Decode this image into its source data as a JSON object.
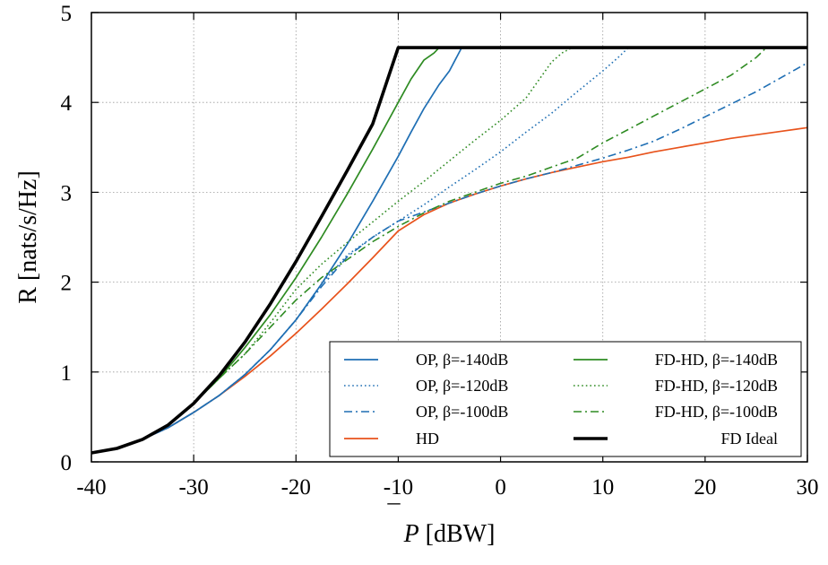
{
  "chart_data": {
    "type": "line",
    "xlabel_main": "P",
    "xlabel_bar": "¯",
    "xlabel_unit": " [dBW]",
    "ylabel": "R [nats/s/Hz]",
    "xlim": [
      -40,
      30
    ],
    "ylim": [
      0,
      5
    ],
    "xticks": [
      -40,
      -30,
      -20,
      -10,
      0,
      10,
      20,
      30
    ],
    "yticks": [
      0,
      1,
      2,
      3,
      4,
      5
    ],
    "grid": true,
    "legend_position": "bottom-right",
    "series": [
      {
        "name": "OP, β=-140dB",
        "color": "#1f6fb4",
        "style": "solid",
        "points": [
          [
            -40,
            0.1
          ],
          [
            -37.5,
            0.15
          ],
          [
            -35,
            0.25
          ],
          [
            -32.5,
            0.38
          ],
          [
            -30,
            0.55
          ],
          [
            -27.5,
            0.74
          ],
          [
            -25,
            0.97
          ],
          [
            -22.5,
            1.25
          ],
          [
            -20,
            1.58
          ],
          [
            -17.5,
            1.98
          ],
          [
            -15,
            2.42
          ],
          [
            -12.5,
            2.9
          ],
          [
            -10,
            3.4
          ],
          [
            -8.75,
            3.67
          ],
          [
            -7.5,
            3.93
          ],
          [
            -6,
            4.2
          ],
          [
            -5,
            4.35
          ],
          [
            -3.8,
            4.61
          ],
          [
            30,
            4.61
          ]
        ]
      },
      {
        "name": "OP, β=-120dB",
        "color": "#1f6fb4",
        "style": "dotted",
        "points": [
          [
            -40,
            0.1
          ],
          [
            -37.5,
            0.15
          ],
          [
            -35,
            0.25
          ],
          [
            -32.5,
            0.38
          ],
          [
            -30,
            0.55
          ],
          [
            -27.5,
            0.74
          ],
          [
            -25,
            0.97
          ],
          [
            -22.5,
            1.25
          ],
          [
            -20,
            1.58
          ],
          [
            -17.5,
            1.98
          ],
          [
            -15,
            2.3
          ],
          [
            -12.5,
            2.5
          ],
          [
            -10,
            2.68
          ],
          [
            -7.5,
            2.86
          ],
          [
            -5,
            3.06
          ],
          [
            -2.5,
            3.25
          ],
          [
            0,
            3.45
          ],
          [
            2.5,
            3.67
          ],
          [
            5,
            3.88
          ],
          [
            7.5,
            4.12
          ],
          [
            10,
            4.35
          ],
          [
            11.5,
            4.5
          ],
          [
            12.5,
            4.61
          ],
          [
            30,
            4.61
          ]
        ]
      },
      {
        "name": "OP, β=-100dB",
        "color": "#1f6fb4",
        "style": "dashdot",
        "points": [
          [
            -40,
            0.1
          ],
          [
            -37.5,
            0.15
          ],
          [
            -35,
            0.25
          ],
          [
            -32.5,
            0.38
          ],
          [
            -30,
            0.55
          ],
          [
            -27.5,
            0.74
          ],
          [
            -25,
            0.97
          ],
          [
            -22.5,
            1.25
          ],
          [
            -20,
            1.58
          ],
          [
            -17.5,
            1.95
          ],
          [
            -15,
            2.28
          ],
          [
            -12.5,
            2.5
          ],
          [
            -10,
            2.68
          ],
          [
            -7.5,
            2.78
          ],
          [
            -5,
            2.88
          ],
          [
            -2.5,
            2.98
          ],
          [
            0,
            3.07
          ],
          [
            2.5,
            3.15
          ],
          [
            5,
            3.22
          ],
          [
            7.5,
            3.3
          ],
          [
            10,
            3.38
          ],
          [
            12.5,
            3.47
          ],
          [
            15,
            3.57
          ],
          [
            17.5,
            3.7
          ],
          [
            20,
            3.84
          ],
          [
            22.5,
            3.98
          ],
          [
            25,
            4.12
          ],
          [
            27.5,
            4.28
          ],
          [
            30,
            4.44
          ]
        ]
      },
      {
        "name": "HD",
        "color": "#e8531c",
        "style": "solid",
        "points": [
          [
            -40,
            0.1
          ],
          [
            -37.5,
            0.15
          ],
          [
            -35,
            0.25
          ],
          [
            -32.5,
            0.38
          ],
          [
            -30,
            0.55
          ],
          [
            -27.5,
            0.74
          ],
          [
            -25,
            0.95
          ],
          [
            -22.5,
            1.18
          ],
          [
            -20,
            1.43
          ],
          [
            -17.5,
            1.7
          ],
          [
            -15,
            1.98
          ],
          [
            -12.5,
            2.27
          ],
          [
            -10,
            2.57
          ],
          [
            -7.5,
            2.75
          ],
          [
            -5,
            2.88
          ],
          [
            -2.5,
            2.98
          ],
          [
            0,
            3.07
          ],
          [
            2.5,
            3.15
          ],
          [
            5,
            3.22
          ],
          [
            7.5,
            3.28
          ],
          [
            10,
            3.34
          ],
          [
            12.5,
            3.39
          ],
          [
            15,
            3.45
          ],
          [
            17.5,
            3.5
          ],
          [
            20,
            3.55
          ],
          [
            22.5,
            3.6
          ],
          [
            25,
            3.64
          ],
          [
            27.5,
            3.68
          ],
          [
            30,
            3.72
          ]
        ]
      },
      {
        "name": "FD-HD, β=-140dB",
        "color": "#2e8b22",
        "style": "solid",
        "points": [
          [
            -40,
            0.1
          ],
          [
            -37.5,
            0.15
          ],
          [
            -35,
            0.25
          ],
          [
            -32.5,
            0.41
          ],
          [
            -30,
            0.65
          ],
          [
            -27.5,
            0.93
          ],
          [
            -25,
            1.27
          ],
          [
            -22.5,
            1.64
          ],
          [
            -20,
            2.05
          ],
          [
            -17.5,
            2.5
          ],
          [
            -15,
            2.98
          ],
          [
            -12.5,
            3.48
          ],
          [
            -10,
            4.0
          ],
          [
            -8.75,
            4.26
          ],
          [
            -7.5,
            4.47
          ],
          [
            -6.5,
            4.55
          ],
          [
            -6,
            4.61
          ],
          [
            30,
            4.61
          ]
        ]
      },
      {
        "name": "FD-HD, β=-120dB",
        "color": "#2e8b22",
        "style": "dotted",
        "points": [
          [
            -40,
            0.1
          ],
          [
            -37.5,
            0.15
          ],
          [
            -35,
            0.25
          ],
          [
            -32.5,
            0.41
          ],
          [
            -30,
            0.65
          ],
          [
            -27.5,
            0.93
          ],
          [
            -25,
            1.2
          ],
          [
            -22.5,
            1.55
          ],
          [
            -20,
            1.92
          ],
          [
            -17.5,
            2.2
          ],
          [
            -15,
            2.44
          ],
          [
            -12.5,
            2.67
          ],
          [
            -10,
            2.9
          ],
          [
            -7.5,
            3.12
          ],
          [
            -5,
            3.35
          ],
          [
            -2.5,
            3.58
          ],
          [
            0,
            3.8
          ],
          [
            2.5,
            4.05
          ],
          [
            5,
            4.45
          ],
          [
            6,
            4.55
          ],
          [
            7,
            4.61
          ],
          [
            30,
            4.61
          ]
        ]
      },
      {
        "name": "FD-HD, β=-100dB",
        "color": "#2e8b22",
        "style": "dashdot",
        "points": [
          [
            -40,
            0.1
          ],
          [
            -37.5,
            0.15
          ],
          [
            -35,
            0.25
          ],
          [
            -32.5,
            0.41
          ],
          [
            -30,
            0.65
          ],
          [
            -27.5,
            0.93
          ],
          [
            -25,
            1.2
          ],
          [
            -22.5,
            1.5
          ],
          [
            -20,
            1.8
          ],
          [
            -17.5,
            2.05
          ],
          [
            -15,
            2.25
          ],
          [
            -12.5,
            2.45
          ],
          [
            -10,
            2.62
          ],
          [
            -7.5,
            2.77
          ],
          [
            -5,
            2.9
          ],
          [
            -2.5,
            3.0
          ],
          [
            0,
            3.1
          ],
          [
            2.5,
            3.18
          ],
          [
            5,
            3.28
          ],
          [
            7.5,
            3.38
          ],
          [
            10,
            3.55
          ],
          [
            12.5,
            3.7
          ],
          [
            15,
            3.85
          ],
          [
            17.5,
            4.0
          ],
          [
            20,
            4.15
          ],
          [
            22.5,
            4.3
          ],
          [
            25,
            4.5
          ],
          [
            26,
            4.61
          ],
          [
            30,
            4.61
          ]
        ]
      },
      {
        "name": "FD Ideal",
        "color": "#000000",
        "style": "thick",
        "points": [
          [
            -40,
            0.1
          ],
          [
            -37.5,
            0.15
          ],
          [
            -35,
            0.25
          ],
          [
            -32.5,
            0.41
          ],
          [
            -30,
            0.65
          ],
          [
            -27.5,
            0.96
          ],
          [
            -25,
            1.33
          ],
          [
            -22.5,
            1.76
          ],
          [
            -20,
            2.23
          ],
          [
            -17.5,
            2.73
          ],
          [
            -15,
            3.24
          ],
          [
            -12.5,
            3.76
          ],
          [
            -10,
            4.61
          ],
          [
            30,
            4.61
          ]
        ]
      }
    ]
  }
}
